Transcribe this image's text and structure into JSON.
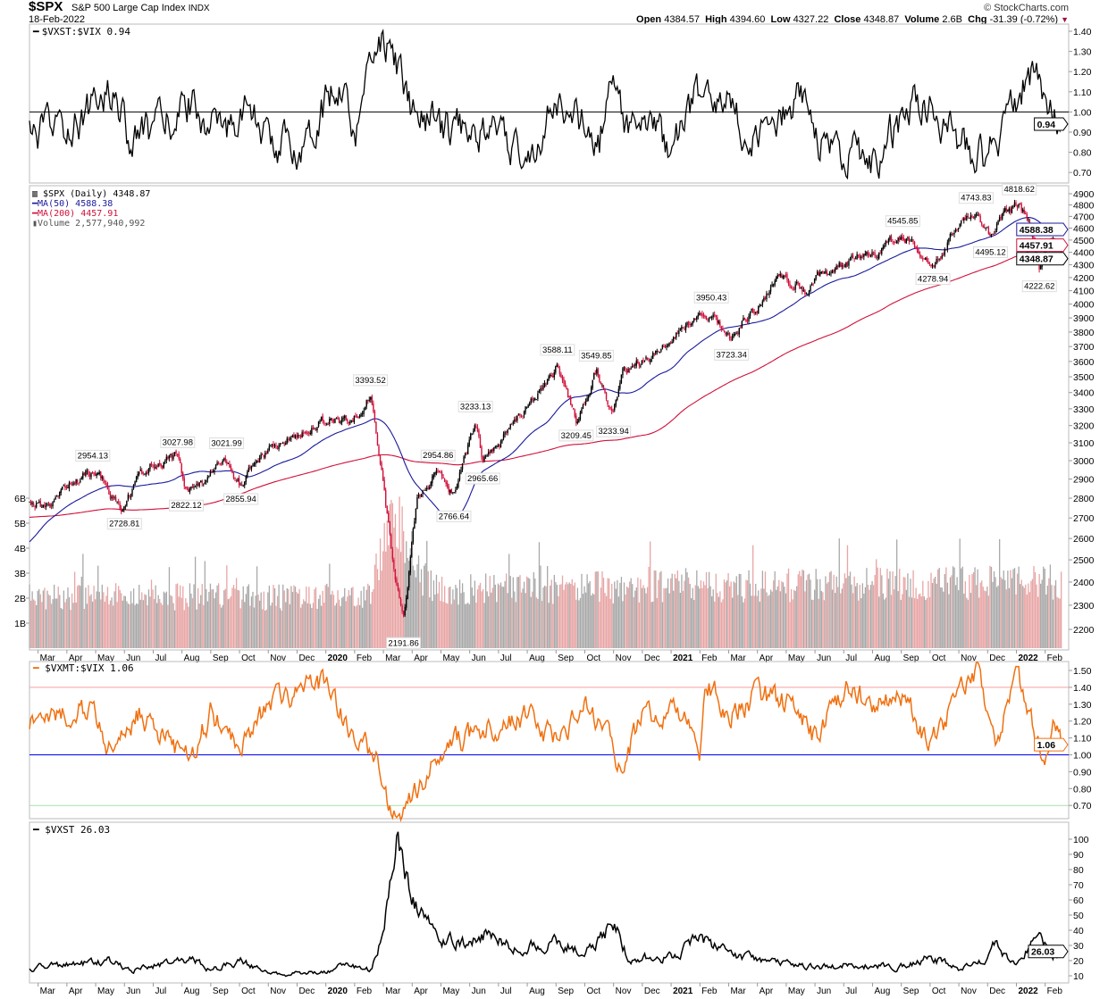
{
  "header": {
    "symbol": "$SPX",
    "name": "S&P 500 Large Cap Index",
    "exchange": "INDX",
    "date": "18-Feb-2022",
    "copyright": "© StockCharts.com",
    "open_label": "Open",
    "open": "4384.57",
    "high_label": "High",
    "high": "4394.60",
    "low_label": "Low",
    "low": "4327.22",
    "close_label": "Close",
    "close": "4348.87",
    "volume_label": "Volume",
    "volume": "2.6B",
    "chg_label": "Chg",
    "chg": "-31.39 (-0.72%)",
    "chg_arrow": "▼"
  },
  "colors": {
    "up": "#000000",
    "down": "#d0103a",
    "ma50": "#1a1a9c",
    "ma200": "#d0103a",
    "vol_up": "#a9a9a9",
    "vol_down": "#e8a5a5",
    "vxmt": "#f07010",
    "blue_line": "#0000ee",
    "pink_line": "#f4a0a0",
    "green_line": "#a8e0a8"
  },
  "x_axis": {
    "months": [
      {
        "t": 0,
        "label": "Mar"
      },
      {
        "t": 1,
        "label": "Apr"
      },
      {
        "t": 2,
        "label": "May"
      },
      {
        "t": 3,
        "label": "Jun"
      },
      {
        "t": 4,
        "label": "Jul"
      },
      {
        "t": 5,
        "label": "Aug"
      },
      {
        "t": 6,
        "label": "Sep"
      },
      {
        "t": 7,
        "label": "Oct"
      },
      {
        "t": 8,
        "label": "Nov"
      },
      {
        "t": 9,
        "label": "Dec"
      },
      {
        "t": 10,
        "label": "2020",
        "bold": true
      },
      {
        "t": 11,
        "label": "Feb"
      },
      {
        "t": 12,
        "label": "Mar"
      },
      {
        "t": 13,
        "label": "Apr"
      },
      {
        "t": 14,
        "label": "May"
      },
      {
        "t": 15,
        "label": "Jun"
      },
      {
        "t": 16,
        "label": "Jul"
      },
      {
        "t": 17,
        "label": "Aug"
      },
      {
        "t": 18,
        "label": "Sep"
      },
      {
        "t": 19,
        "label": "Oct"
      },
      {
        "t": 20,
        "label": "Nov"
      },
      {
        "t": 21,
        "label": "Dec"
      },
      {
        "t": 22,
        "label": "2021",
        "bold": true
      },
      {
        "t": 23,
        "label": "Feb"
      },
      {
        "t": 24,
        "label": "Mar"
      },
      {
        "t": 25,
        "label": "Apr"
      },
      {
        "t": 26,
        "label": "May"
      },
      {
        "t": 27,
        "label": "Jun"
      },
      {
        "t": 28,
        "label": "Jul"
      },
      {
        "t": 29,
        "label": "Aug"
      },
      {
        "t": 30,
        "label": "Sep"
      },
      {
        "t": 31,
        "label": "Oct"
      },
      {
        "t": 32,
        "label": "Nov"
      },
      {
        "t": 33,
        "label": "Dec"
      },
      {
        "t": 34,
        "label": "2022",
        "bold": true
      },
      {
        "t": 35,
        "label": "Feb"
      }
    ],
    "time_unit": "months since 1-Mar-2019"
  },
  "chart_data": [
    {
      "type": "line",
      "title": "$VXST:$VIX 0.94",
      "series_name": "$VXST:$VIX",
      "last": "0.94",
      "yticks": [
        "1.40",
        "1.30",
        "1.20",
        "1.10",
        "1.00",
        "0.90",
        "0.80",
        "0.70"
      ],
      "ylim": [
        0.65,
        1.42
      ],
      "reference_line": 1.0,
      "anchors": [
        [
          -0.3,
          0.88
        ],
        [
          1,
          0.92
        ],
        [
          2.6,
          1.12
        ],
        [
          3.2,
          0.85
        ],
        [
          4.5,
          0.95
        ],
        [
          5.3,
          1.05
        ],
        [
          6.5,
          0.85
        ],
        [
          7.1,
          1.05
        ],
        [
          8,
          0.85
        ],
        [
          9,
          0.82
        ],
        [
          10.6,
          1.18
        ],
        [
          11,
          0.85
        ],
        [
          11.8,
          1.4
        ],
        [
          12.3,
          1.28
        ],
        [
          13,
          1.0
        ],
        [
          14,
          0.9
        ],
        [
          15,
          0.95
        ],
        [
          17,
          0.78
        ],
        [
          18.1,
          1.05
        ],
        [
          19.5,
          0.85
        ],
        [
          20,
          1.2
        ],
        [
          20.3,
          0.95
        ],
        [
          22,
          0.85
        ],
        [
          22.8,
          1.05
        ],
        [
          24,
          1.02
        ],
        [
          25,
          0.85
        ],
        [
          26.6,
          1.1
        ],
        [
          27,
          0.85
        ],
        [
          28,
          0.8
        ],
        [
          29,
          0.75
        ],
        [
          30.5,
          1.05
        ],
        [
          31,
          1.02
        ],
        [
          32,
          0.85
        ],
        [
          33,
          0.75
        ],
        [
          33.8,
          1.05
        ],
        [
          34.6,
          1.2
        ],
        [
          35,
          1.0
        ],
        [
          35.6,
          0.94
        ]
      ]
    },
    {
      "type": "candlestick",
      "title": "$SPX (Daily) 4348.87",
      "legend": [
        "$SPX (Daily) 4348.87",
        "MA(50) 4588.38",
        "MA(200) 4457.91",
        "Volume 2,577,940,992"
      ],
      "last": "4348.87",
      "ma50_last": "4588.38",
      "ma200_last": "4457.91",
      "scale": "log",
      "yticks": [
        "4900",
        "4800",
        "4700",
        "4600",
        "4500",
        "4400",
        "4300",
        "4200",
        "4100",
        "4000",
        "3900",
        "3800",
        "3700",
        "3600",
        "3500",
        "3400",
        "3300",
        "3200",
        "3100",
        "3000",
        "2900",
        "2800",
        "2700",
        "2600",
        "2500",
        "2400",
        "2300",
        "2200"
      ],
      "ylim": [
        2150,
        4950
      ],
      "volume_ticks": [
        "1B",
        "2B",
        "3B",
        "4B",
        "5B",
        "6B"
      ],
      "close_anchors": [
        [
          -7,
          2850
        ],
        [
          -5,
          2900
        ],
        [
          -3.9,
          2700
        ],
        [
          -2.2,
          2350
        ],
        [
          -1.9,
          2500
        ],
        [
          -1,
          2700
        ],
        [
          -0.3,
          2780
        ],
        [
          0.4,
          2750
        ],
        [
          1,
          2867
        ],
        [
          1.9,
          2945
        ],
        [
          2.3,
          2880
        ],
        [
          2.9,
          2745
        ],
        [
          3.5,
          2900
        ],
        [
          4.0,
          2980
        ],
        [
          4.85,
          3020
        ],
        [
          5.15,
          2830
        ],
        [
          5.6,
          2880
        ],
        [
          6.0,
          2930
        ],
        [
          6.55,
          3010
        ],
        [
          7.05,
          2870
        ],
        [
          7.6,
          2990
        ],
        [
          8,
          3050
        ],
        [
          9,
          3140
        ],
        [
          10,
          3240
        ],
        [
          10.9,
          3230
        ],
        [
          11.55,
          3385
        ],
        [
          11.9,
          3000
        ],
        [
          12.3,
          2500
        ],
        [
          12.7,
          2240
        ],
        [
          13.2,
          2800
        ],
        [
          13.6,
          2860
        ],
        [
          13.9,
          2950
        ],
        [
          14.45,
          2800
        ],
        [
          15.2,
          3220
        ],
        [
          15.45,
          3000
        ],
        [
          16,
          3100
        ],
        [
          16.5,
          3200
        ],
        [
          17.2,
          3350
        ],
        [
          18.05,
          3575
        ],
        [
          18.7,
          3250
        ],
        [
          19.2,
          3400
        ],
        [
          19.4,
          3530
        ],
        [
          20,
          3270
        ],
        [
          20.3,
          3510
        ],
        [
          21,
          3620
        ],
        [
          21.6,
          3700
        ],
        [
          22,
          3760
        ],
        [
          22.7,
          3870
        ],
        [
          23.4,
          3930
        ],
        [
          24.1,
          3740
        ],
        [
          24.5,
          3900
        ],
        [
          25,
          3975
        ],
        [
          25.6,
          4180
        ],
        [
          26.3,
          4160
        ],
        [
          26.7,
          4080
        ],
        [
          27,
          4200
        ],
        [
          28,
          4300
        ],
        [
          28.6,
          4390
        ],
        [
          29.2,
          4420
        ],
        [
          30.05,
          4530
        ],
        [
          30.6,
          4430
        ],
        [
          31.1,
          4300
        ],
        [
          31.5,
          4450
        ],
        [
          32.2,
          4680
        ],
        [
          32.6,
          4730
        ],
        [
          33.1,
          4520
        ],
        [
          33.5,
          4700
        ],
        [
          34.1,
          4800
        ],
        [
          34.4,
          4680
        ],
        [
          34.8,
          4250
        ],
        [
          35.1,
          4500
        ],
        [
          35.35,
          4480
        ],
        [
          35.6,
          4349
        ]
      ],
      "volume_anchors_B": [
        [
          -0.3,
          2.0
        ],
        [
          11.5,
          2.0
        ],
        [
          11.9,
          3.5
        ],
        [
          12.4,
          5.0
        ],
        [
          12.8,
          4.2
        ],
        [
          13.3,
          2.8
        ],
        [
          14,
          2.3
        ],
        [
          35.6,
          2.58
        ]
      ],
      "annotations": [
        {
          "t": 1.9,
          "value": "2954.13",
          "pos": "above"
        },
        {
          "t": 3.0,
          "value": "2728.81",
          "pos": "below"
        },
        {
          "t": 4.85,
          "value": "3027.98",
          "pos": "above"
        },
        {
          "t": 5.15,
          "value": "2822.12",
          "pos": "below"
        },
        {
          "t": 6.55,
          "value": "3021.99",
          "pos": "above"
        },
        {
          "t": 7.05,
          "value": "2855.94",
          "pos": "below"
        },
        {
          "t": 11.55,
          "value": "3393.52",
          "pos": "above"
        },
        {
          "t": 12.7,
          "value": "2191.86",
          "pos": "below"
        },
        {
          "t": 13.9,
          "value": "2954.86",
          "pos": "above"
        },
        {
          "t": 14.45,
          "value": "2766.64",
          "pos": "below"
        },
        {
          "t": 15.2,
          "value": "3233.13",
          "pos": "above"
        },
        {
          "t": 15.45,
          "value": "2965.66",
          "pos": "below"
        },
        {
          "t": 18.05,
          "value": "3588.11",
          "pos": "above"
        },
        {
          "t": 18.7,
          "value": "3209.45",
          "pos": "below"
        },
        {
          "t": 19.4,
          "value": "3549.85",
          "pos": "above"
        },
        {
          "t": 20,
          "value": "3233.94",
          "pos": "below"
        },
        {
          "t": 23.4,
          "value": "3950.43",
          "pos": "above"
        },
        {
          "t": 24.1,
          "value": "3723.34",
          "pos": "below"
        },
        {
          "t": 30.05,
          "value": "4545.85",
          "pos": "above"
        },
        {
          "t": 31.1,
          "value": "4278.94",
          "pos": "below"
        },
        {
          "t": 32.6,
          "value": "4743.83",
          "pos": "above"
        },
        {
          "t": 33.1,
          "value": "4495.12",
          "pos": "below"
        },
        {
          "t": 34.1,
          "value": "4818.62",
          "pos": "above"
        },
        {
          "t": 34.8,
          "value": "4222.62",
          "pos": "below"
        }
      ]
    },
    {
      "type": "line",
      "title": "$VXMT:$VIX 1.06",
      "series_name": "$VXMT:$VIX",
      "last": "1.06",
      "yticks": [
        "1.50",
        "1.40",
        "1.30",
        "1.20",
        "1.10",
        "1.00",
        "0.90",
        "0.80",
        "0.70"
      ],
      "ylim": [
        0.62,
        1.55
      ],
      "reference_lines": [
        1.4,
        1.0,
        0.7
      ],
      "anchors": [
        [
          -0.3,
          1.2
        ],
        [
          1.8,
          1.28
        ],
        [
          2.6,
          1.0
        ],
        [
          3.5,
          1.25
        ],
        [
          5.3,
          0.95
        ],
        [
          6,
          1.25
        ],
        [
          7,
          1.05
        ],
        [
          8,
          1.3
        ],
        [
          9,
          1.38
        ],
        [
          10,
          1.42
        ],
        [
          11,
          1.1
        ],
        [
          11.8,
          1.0
        ],
        [
          12,
          0.72
        ],
        [
          12.6,
          0.66
        ],
        [
          13.4,
          0.85
        ],
        [
          14.2,
          1.05
        ],
        [
          15,
          1.1
        ],
        [
          17,
          1.25
        ],
        [
          18.1,
          1.05
        ],
        [
          19,
          1.3
        ],
        [
          20,
          1.1
        ],
        [
          20.2,
          0.92
        ],
        [
          21,
          1.2
        ],
        [
          22,
          1.3
        ],
        [
          23,
          1.05
        ],
        [
          23.2,
          1.45
        ],
        [
          24,
          1.25
        ],
        [
          25,
          1.35
        ],
        [
          26,
          1.3
        ],
        [
          27,
          1.1
        ],
        [
          28,
          1.4
        ],
        [
          29,
          1.3
        ],
        [
          30,
          1.35
        ],
        [
          31,
          1.05
        ],
        [
          32,
          1.35
        ],
        [
          32.6,
          1.5
        ],
        [
          33.3,
          1.05
        ],
        [
          34,
          1.45
        ],
        [
          34.6,
          1.15
        ],
        [
          35,
          0.98
        ],
        [
          35.3,
          1.25
        ],
        [
          35.6,
          1.06
        ]
      ]
    },
    {
      "type": "line",
      "title": "$VXST 26.03",
      "series_name": "$VXST",
      "last": "26.03",
      "yticks": [
        "100",
        "90",
        "80",
        "70",
        "60",
        "50",
        "40",
        "30",
        "20",
        "10"
      ],
      "ylim": [
        5,
        108
      ],
      "anchors": [
        [
          -0.3,
          15
        ],
        [
          2.6,
          20
        ],
        [
          3.2,
          13
        ],
        [
          5.3,
          22
        ],
        [
          6,
          14
        ],
        [
          7.1,
          20
        ],
        [
          8,
          11
        ],
        [
          10,
          12
        ],
        [
          10.6,
          18
        ],
        [
          11.6,
          13
        ],
        [
          12,
          42
        ],
        [
          12.5,
          105
        ],
        [
          13,
          60
        ],
        [
          14,
          35
        ],
        [
          15,
          30
        ],
        [
          15.7,
          40
        ],
        [
          16.5,
          27
        ],
        [
          18.1,
          32
        ],
        [
          19,
          25
        ],
        [
          20,
          45
        ],
        [
          20.5,
          22
        ],
        [
          22,
          22
        ],
        [
          23,
          35
        ],
        [
          24,
          25
        ],
        [
          25,
          20
        ],
        [
          26,
          18
        ],
        [
          27,
          15
        ],
        [
          28,
          17
        ],
        [
          30,
          16
        ],
        [
          31,
          22
        ],
        [
          32,
          15
        ],
        [
          33,
          20
        ],
        [
          33.2,
          32
        ],
        [
          34,
          17
        ],
        [
          34.8,
          37
        ],
        [
          35.2,
          22
        ],
        [
          35.6,
          26.03
        ]
      ]
    }
  ]
}
